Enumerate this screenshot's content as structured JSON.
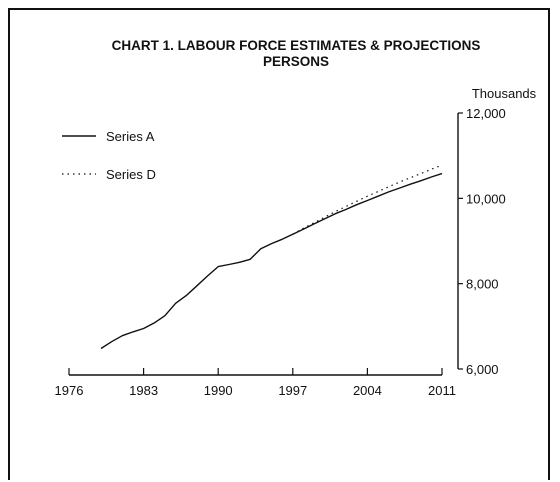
{
  "chart_data": {
    "type": "line",
    "title": "CHART 1. LABOUR FORCE ESTIMATES & PROJECTIONS",
    "subtitle": "PERSONS",
    "ylabel": "Thousands",
    "xlabel": "",
    "xlim": [
      1976,
      2011
    ],
    "ylim": [
      6000,
      12000
    ],
    "xticks": [
      "1976",
      "1983",
      "1990",
      "1997",
      "2004",
      "2011"
    ],
    "yticks": [
      "6,000",
      "8,000",
      "10,000",
      "12,000"
    ],
    "x_tick_values": [
      1976,
      1983,
      1990,
      1997,
      2004,
      2011
    ],
    "y_tick_values": [
      6000,
      8000,
      10000,
      12000
    ],
    "legend_position": "top-left",
    "grid": false,
    "series": [
      {
        "name": "Series A",
        "style": "solid",
        "x": [
          1979,
          1980,
          1981,
          1982,
          1983,
          1984,
          1985,
          1986,
          1987,
          1988,
          1989,
          1990,
          1991,
          1992,
          1993,
          1994,
          1995,
          1996,
          1997,
          1998,
          1999,
          2000,
          2001,
          2002,
          2003,
          2004,
          2005,
          2006,
          2007,
          2008,
          2009,
          2010,
          2011
        ],
        "values": [
          6480,
          6640,
          6780,
          6870,
          6950,
          7080,
          7250,
          7540,
          7720,
          7950,
          8180,
          8400,
          8450,
          8500,
          8570,
          8820,
          8940,
          9040,
          9160,
          9280,
          9400,
          9520,
          9640,
          9740,
          9850,
          9950,
          10050,
          10150,
          10240,
          10330,
          10410,
          10500,
          10580
        ]
      },
      {
        "name": "Series D",
        "style": "dotted",
        "x": [
          1997,
          1998,
          1999,
          2000,
          2001,
          2002,
          2003,
          2004,
          2005,
          2006,
          2007,
          2008,
          2009,
          2010,
          2011
        ],
        "values": [
          9160,
          9300,
          9430,
          9560,
          9690,
          9810,
          9930,
          10050,
          10160,
          10270,
          10380,
          10480,
          10580,
          10680,
          10780
        ]
      }
    ]
  }
}
